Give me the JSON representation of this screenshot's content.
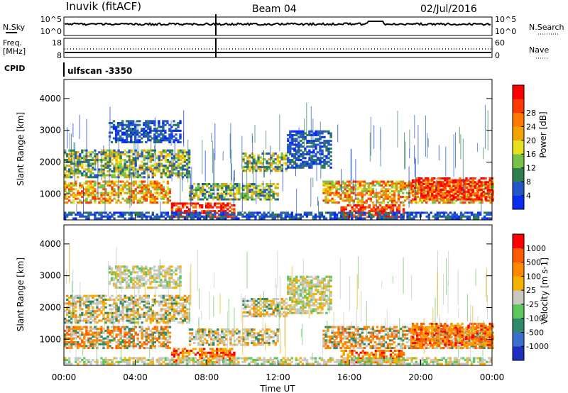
{
  "header": {
    "station": "Inuvik (fitACF)",
    "beam": "Beam 04",
    "date": "02/Jul/2016",
    "cpid_label": "CPID",
    "cpid_value": "ulfscan -3350"
  },
  "top_panels": {
    "nsky_label": "N.Sky",
    "nsearch_label": "N.Search",
    "nsky_ticks": [
      "10^5",
      "10^0"
    ],
    "nsearch_ticks": [
      "10^5",
      "10^0"
    ],
    "freq_label": "Freq.",
    "freq_unit": "[MHz]",
    "freq_ticks": [
      "18",
      "8"
    ],
    "nave_label": "Nave",
    "nave_ticks": [
      "60",
      "0"
    ]
  },
  "chart_data": [
    {
      "type": "heatmap",
      "name": "power",
      "xlabel": "Time UT",
      "ylabel": "Slant Range [km]",
      "xlim_hours": [
        0,
        24
      ],
      "ylim_km": [
        180,
        4600
      ],
      "x_ticks": [
        "00:00",
        "04:00",
        "08:00",
        "12:00",
        "16:00",
        "20:00",
        "00:00"
      ],
      "y_ticks": [
        "1000",
        "2000",
        "3000",
        "4000"
      ],
      "colorbar": {
        "label": "Power [dB]",
        "ticks": [
          "4",
          "8",
          "12",
          "16",
          "20",
          "24",
          "28"
        ],
        "colors": [
          "#0a2cf0",
          "#2456c9",
          "#2f7f4e",
          "#78c24a",
          "#e8e020",
          "#f2a300",
          "#ff7a00",
          "#ff3a00",
          "#ff0000"
        ]
      }
    },
    {
      "type": "heatmap",
      "name": "velocity",
      "xlabel": "Time UT",
      "ylabel": "Slant Range [km]",
      "xlim_hours": [
        0,
        24
      ],
      "ylim_km": [
        180,
        4600
      ],
      "x_ticks": [
        "00:00",
        "04:00",
        "08:00",
        "12:00",
        "16:00",
        "20:00",
        "00:00"
      ],
      "y_ticks": [
        "1000",
        "2000",
        "3000",
        "4000"
      ],
      "colorbar": {
        "label": "Velocity [m s-1]",
        "ticks": [
          "1000",
          "500",
          "100",
          "25",
          "-25",
          "-100",
          "-500",
          "-1000"
        ],
        "colors": [
          "#1c2fbf",
          "#3a6fcf",
          "#2f8a6a",
          "#5cc75c",
          "#c8c8c0",
          "#f5b000",
          "#ff8a00",
          "#ff5a00",
          "#ff0000"
        ]
      }
    }
  ],
  "x_axis_title": "Time UT"
}
